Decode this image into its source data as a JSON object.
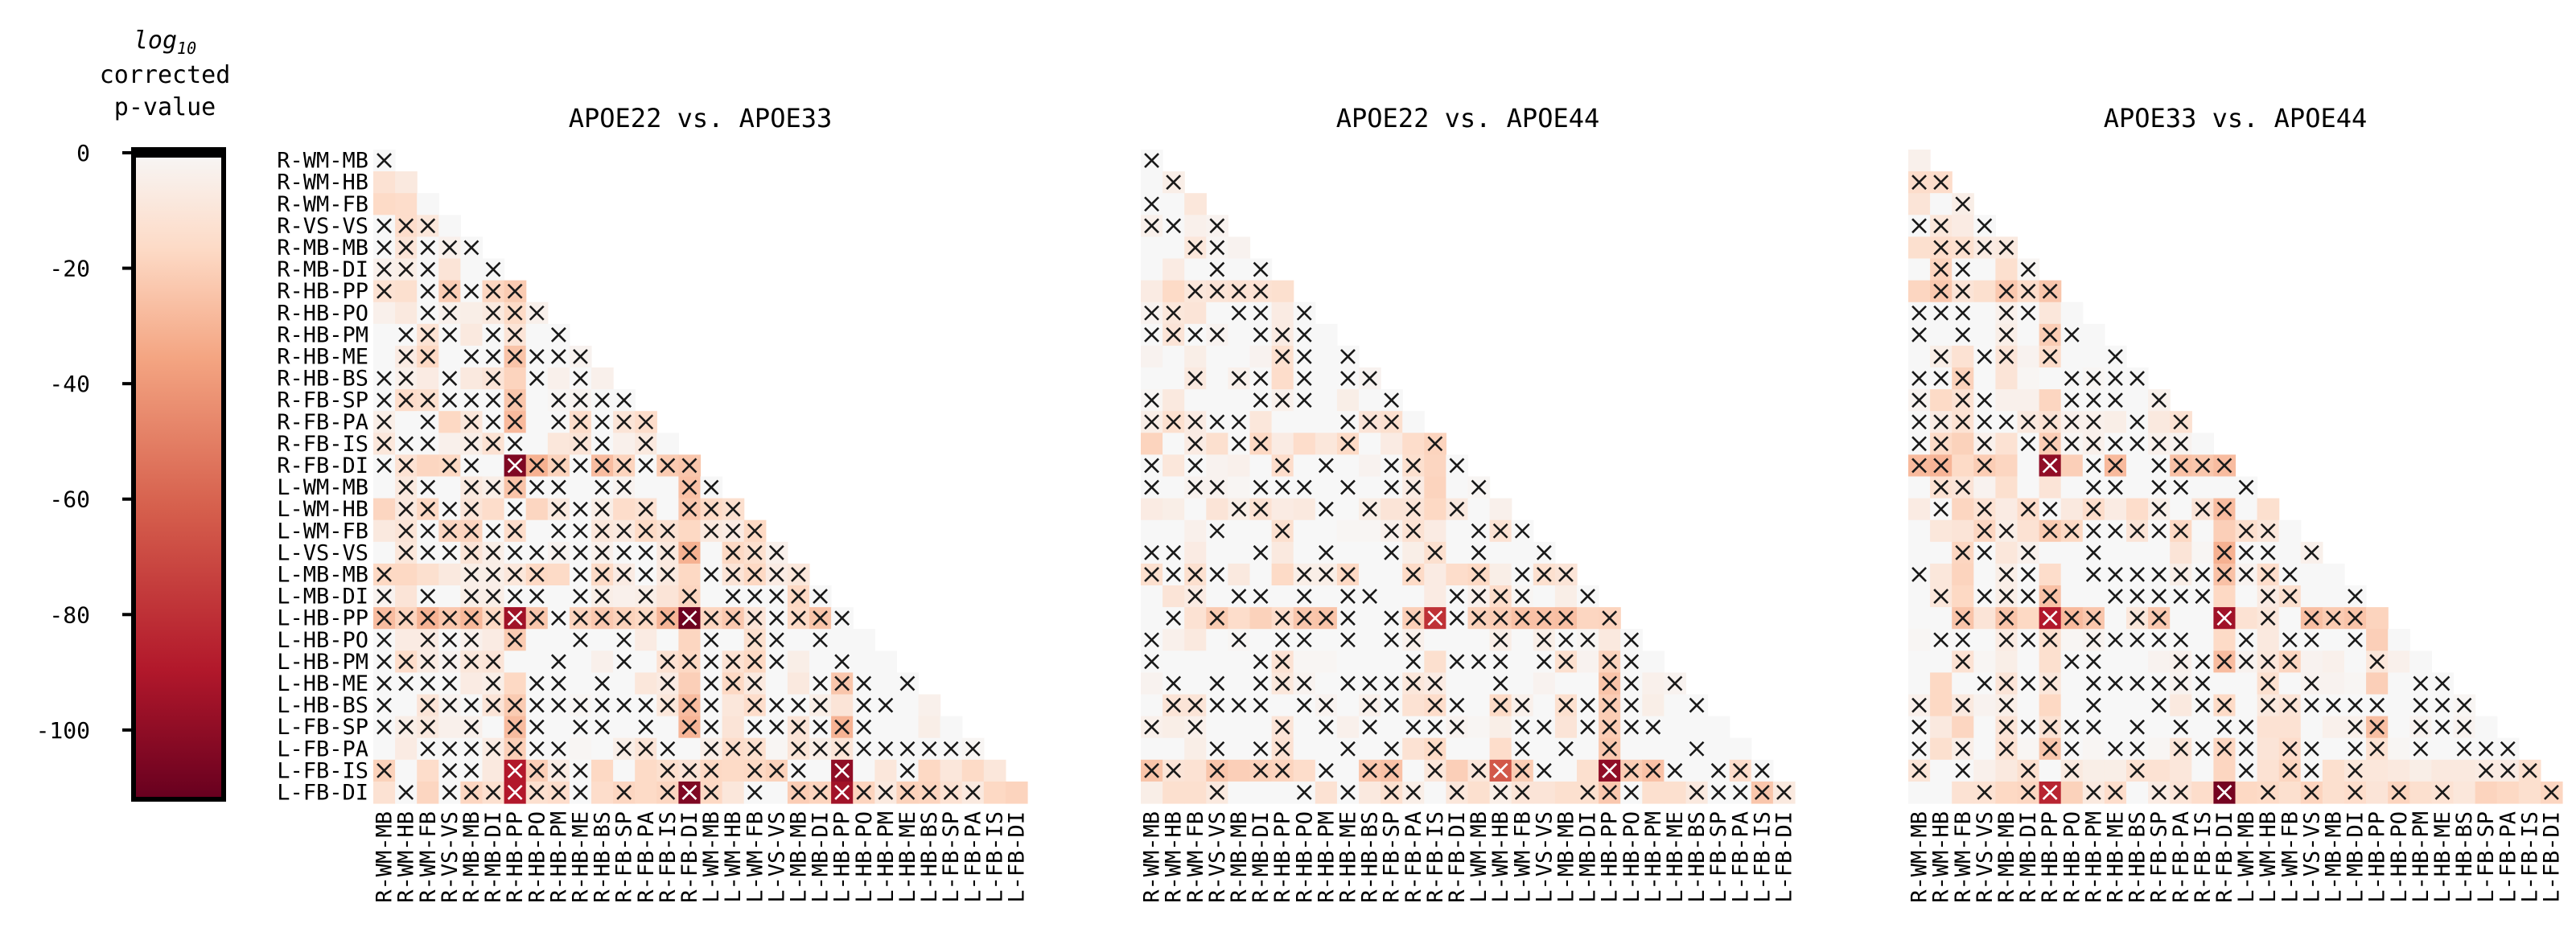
{
  "colorbar": {
    "title_lines": [
      "log10",
      "corrected",
      "p-value"
    ],
    "ticks": [
      "0",
      "-20",
      "-40",
      "-60",
      "-80",
      "-100"
    ],
    "tick_values": [
      0,
      -20,
      -40,
      -60,
      -80,
      -100
    ],
    "range": [
      -112,
      0
    ],
    "colors": [
      "#67001f",
      "#b2182b",
      "#d6604d",
      "#f4a582",
      "#fddbc7",
      "#f7f7f7"
    ]
  },
  "labels": [
    "R-WM-MB",
    "R-WM-HB",
    "R-WM-FB",
    "R-VS-VS",
    "R-MB-MB",
    "R-MB-DI",
    "R-HB-PP",
    "R-HB-PO",
    "R-HB-PM",
    "R-HB-ME",
    "R-HB-BS",
    "R-FB-SP",
    "R-FB-PA",
    "R-FB-IS",
    "R-FB-DI",
    "L-WM-MB",
    "L-WM-HB",
    "L-WM-FB",
    "L-VS-VS",
    "L-MB-MB",
    "L-MB-DI",
    "L-HB-PP",
    "L-HB-PO",
    "L-HB-PM",
    "L-HB-ME",
    "L-HB-BS",
    "L-FB-SP",
    "L-FB-PA",
    "L-FB-IS",
    "L-FB-DI"
  ],
  "chart_data": [
    {
      "type": "heatmap",
      "title": "APOE22 vs. APOE33",
      "shape": "lower-triangle",
      "values_note": "log10 corrected p-value per pair; x marks significant cells",
      "hotspots": [
        {
          "row": "L-HB-PP",
          "col": "R-FB-DI",
          "value": -110
        },
        {
          "row": "R-FB-DI",
          "col": "R-HB-PP",
          "value": -105
        },
        {
          "row": "L-FB-DI",
          "col": "R-FB-DI",
          "value": -105
        },
        {
          "row": "L-FB-IS",
          "col": "L-HB-PP",
          "value": -100
        },
        {
          "row": "L-FB-DI",
          "col": "L-HB-PP",
          "value": -95
        },
        {
          "row": "L-HB-PP",
          "col": "R-HB-PP",
          "value": -95
        },
        {
          "row": "L-FB-IS",
          "col": "R-HB-PP",
          "value": -90
        },
        {
          "row": "L-FB-DI",
          "col": "R-HB-PP",
          "value": -90
        }
      ]
    },
    {
      "type": "heatmap",
      "title": "APOE22 vs. APOE44",
      "shape": "lower-triangle",
      "values_note": "log10 corrected p-value per pair; x marks significant cells",
      "hotspots": [
        {
          "row": "L-FB-IS",
          "col": "L-HB-PP",
          "value": -100
        },
        {
          "row": "L-HB-PP",
          "col": "R-FB-IS",
          "value": -80
        },
        {
          "row": "L-FB-IS",
          "col": "L-WM-HB",
          "value": -65
        }
      ]
    },
    {
      "type": "heatmap",
      "title": "APOE33 vs. APOE44",
      "shape": "lower-triangle",
      "values_note": "log10 corrected p-value per pair; x marks significant cells",
      "hotspots": [
        {
          "row": "L-FB-DI",
          "col": "R-FB-DI",
          "value": -108
        },
        {
          "row": "R-FB-DI",
          "col": "R-HB-PP",
          "value": -100
        },
        {
          "row": "L-HB-PP",
          "col": "R-FB-DI",
          "value": -95
        },
        {
          "row": "L-HB-PP",
          "col": "R-HB-PP",
          "value": -90
        },
        {
          "row": "L-FB-DI",
          "col": "R-HB-PP",
          "value": -85
        }
      ]
    }
  ]
}
